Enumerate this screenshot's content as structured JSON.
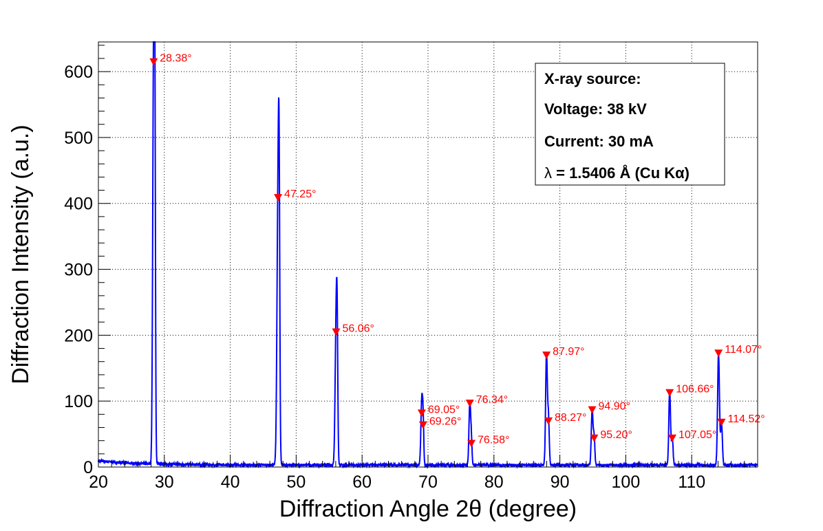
{
  "chart_data": {
    "type": "line",
    "title": "",
    "xlabel": "Diffraction Angle 2θ (degree)",
    "ylabel": "Diffraction Intensity (a.u.)",
    "xlim": [
      20,
      120
    ],
    "ylim": [
      0,
      645
    ],
    "x_ticks": [
      20,
      30,
      40,
      50,
      60,
      70,
      80,
      90,
      100,
      110
    ],
    "y_ticks": [
      0,
      100,
      200,
      300,
      400,
      500,
      600
    ],
    "grid": true,
    "series": [
      {
        "color": "#0000ff",
        "peaks": [
          {
            "center": 28.38,
            "height": 614,
            "width": 0.14
          },
          {
            "center": 28.55,
            "height": 440,
            "width": 0.1
          },
          {
            "center": 47.25,
            "height": 410,
            "width": 0.16
          },
          {
            "center": 47.42,
            "height": 280,
            "width": 0.1
          },
          {
            "center": 56.06,
            "height": 212,
            "width": 0.15
          },
          {
            "center": 56.22,
            "height": 140,
            "width": 0.1
          },
          {
            "center": 69.05,
            "height": 98,
            "width": 0.13
          },
          {
            "center": 69.26,
            "height": 60,
            "width": 0.1
          },
          {
            "center": 76.34,
            "height": 95,
            "width": 0.13
          },
          {
            "center": 76.58,
            "height": 35,
            "width": 0.1
          },
          {
            "center": 87.97,
            "height": 168,
            "width": 0.13
          },
          {
            "center": 88.27,
            "height": 70,
            "width": 0.12
          },
          {
            "center": 94.9,
            "height": 85,
            "width": 0.13
          },
          {
            "center": 95.2,
            "height": 42,
            "width": 0.11
          },
          {
            "center": 106.66,
            "height": 112,
            "width": 0.13
          },
          {
            "center": 107.05,
            "height": 42,
            "width": 0.12
          },
          {
            "center": 114.07,
            "height": 170,
            "width": 0.14
          },
          {
            "center": 114.52,
            "height": 65,
            "width": 0.13
          }
        ],
        "baseline": 3
      }
    ],
    "annotations": [
      {
        "x": 28.38,
        "y": 614,
        "label": "28.38°"
      },
      {
        "x": 47.25,
        "y": 408,
        "label": "47.25°"
      },
      {
        "x": 56.06,
        "y": 204,
        "label": "56.06°"
      },
      {
        "x": 69.05,
        "y": 81,
        "label": "69.05°"
      },
      {
        "x": 69.26,
        "y": 63,
        "label": "69.26°"
      },
      {
        "x": 76.34,
        "y": 96,
        "label": "76.34°"
      },
      {
        "x": 76.58,
        "y": 35,
        "label": "76.58°"
      },
      {
        "x": 87.97,
        "y": 169,
        "label": "87.97°"
      },
      {
        "x": 88.27,
        "y": 69,
        "label": "88.27°"
      },
      {
        "x": 94.9,
        "y": 86,
        "label": "94.90°"
      },
      {
        "x": 95.2,
        "y": 43,
        "label": "95.20°"
      },
      {
        "x": 106.66,
        "y": 112,
        "label": "106.66°"
      },
      {
        "x": 107.05,
        "y": 43,
        "label": "107.05°"
      },
      {
        "x": 114.07,
        "y": 172,
        "label": "114.07°"
      },
      {
        "x": 114.52,
        "y": 67,
        "label": "114.52°"
      }
    ],
    "marker_color": "#ff0000"
  },
  "legend": {
    "placement": "top-right",
    "lines": [
      {
        "prefix": "",
        "text": "X-ray source:"
      },
      {
        "prefix": "",
        "text": "Voltage: 38 kV"
      },
      {
        "prefix": "",
        "text": "Current: 30 mA"
      },
      {
        "prefix": "λ",
        "text": " = 1.5406  Å (Cu Kα)"
      }
    ]
  }
}
